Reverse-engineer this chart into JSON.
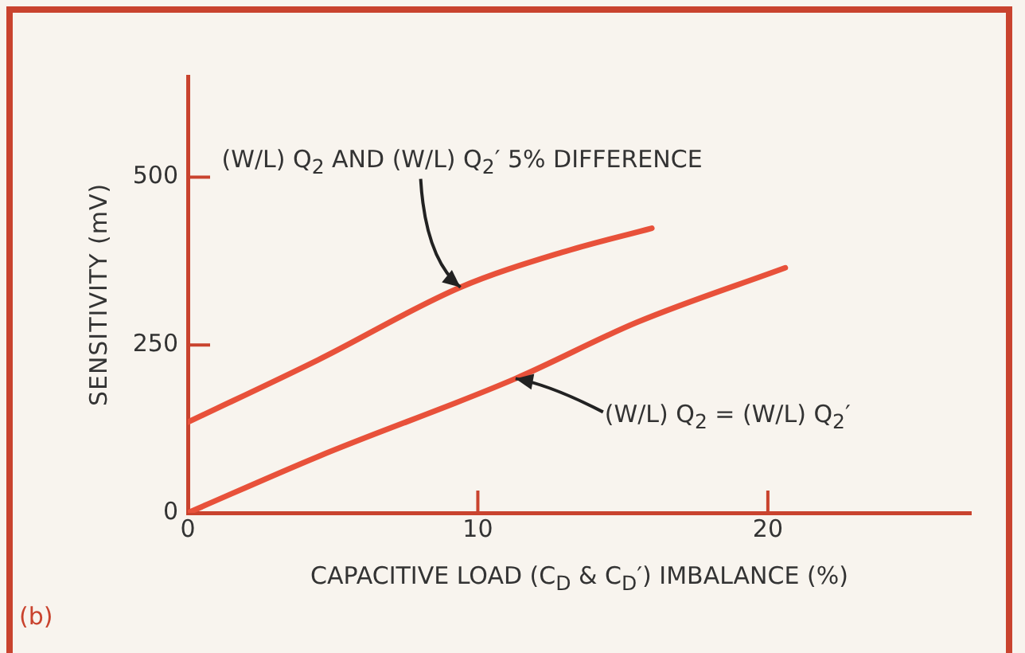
{
  "chart_data": {
    "type": "line",
    "xlabel": "CAPACITIVE LOAD (C$_{D}$ & C$_{D}$′) IMBALANCE (%)",
    "ylabel": "SENSITIVITY (mV)",
    "xlim": [
      0,
      27
    ],
    "xticks": [
      0,
      10,
      20
    ],
    "ylim": [
      0,
      650
    ],
    "yticks": [
      0,
      250,
      500
    ],
    "marker": "none",
    "line_style": "solid",
    "legend": false,
    "series": [
      {
        "color": "#e8513a",
        "x": [
          0,
          4.5,
          9.4,
          12.9,
          16
        ],
        "values": [
          135,
          228,
          336,
          388,
          424
        ]
      },
      {
        "color": "#e8513a",
        "x": [
          0,
          4.5,
          11.3,
          15.5,
          20.6
        ],
        "values": [
          0,
          84,
          200,
          284,
          365
        ]
      }
    ],
    "annotations": [
      {
        "text": "(W/L) Q$_{2}$ AND (W/L) Q$_{2}$′ 5% DIFFERENCE",
        "x": 9.4,
        "y": 336
      },
      {
        "text": "(W/L) Q$_{2}$ = (W/L) Q$_{2}$′",
        "x": 11.3,
        "y": 200
      },
      "(b)"
    ]
  }
}
